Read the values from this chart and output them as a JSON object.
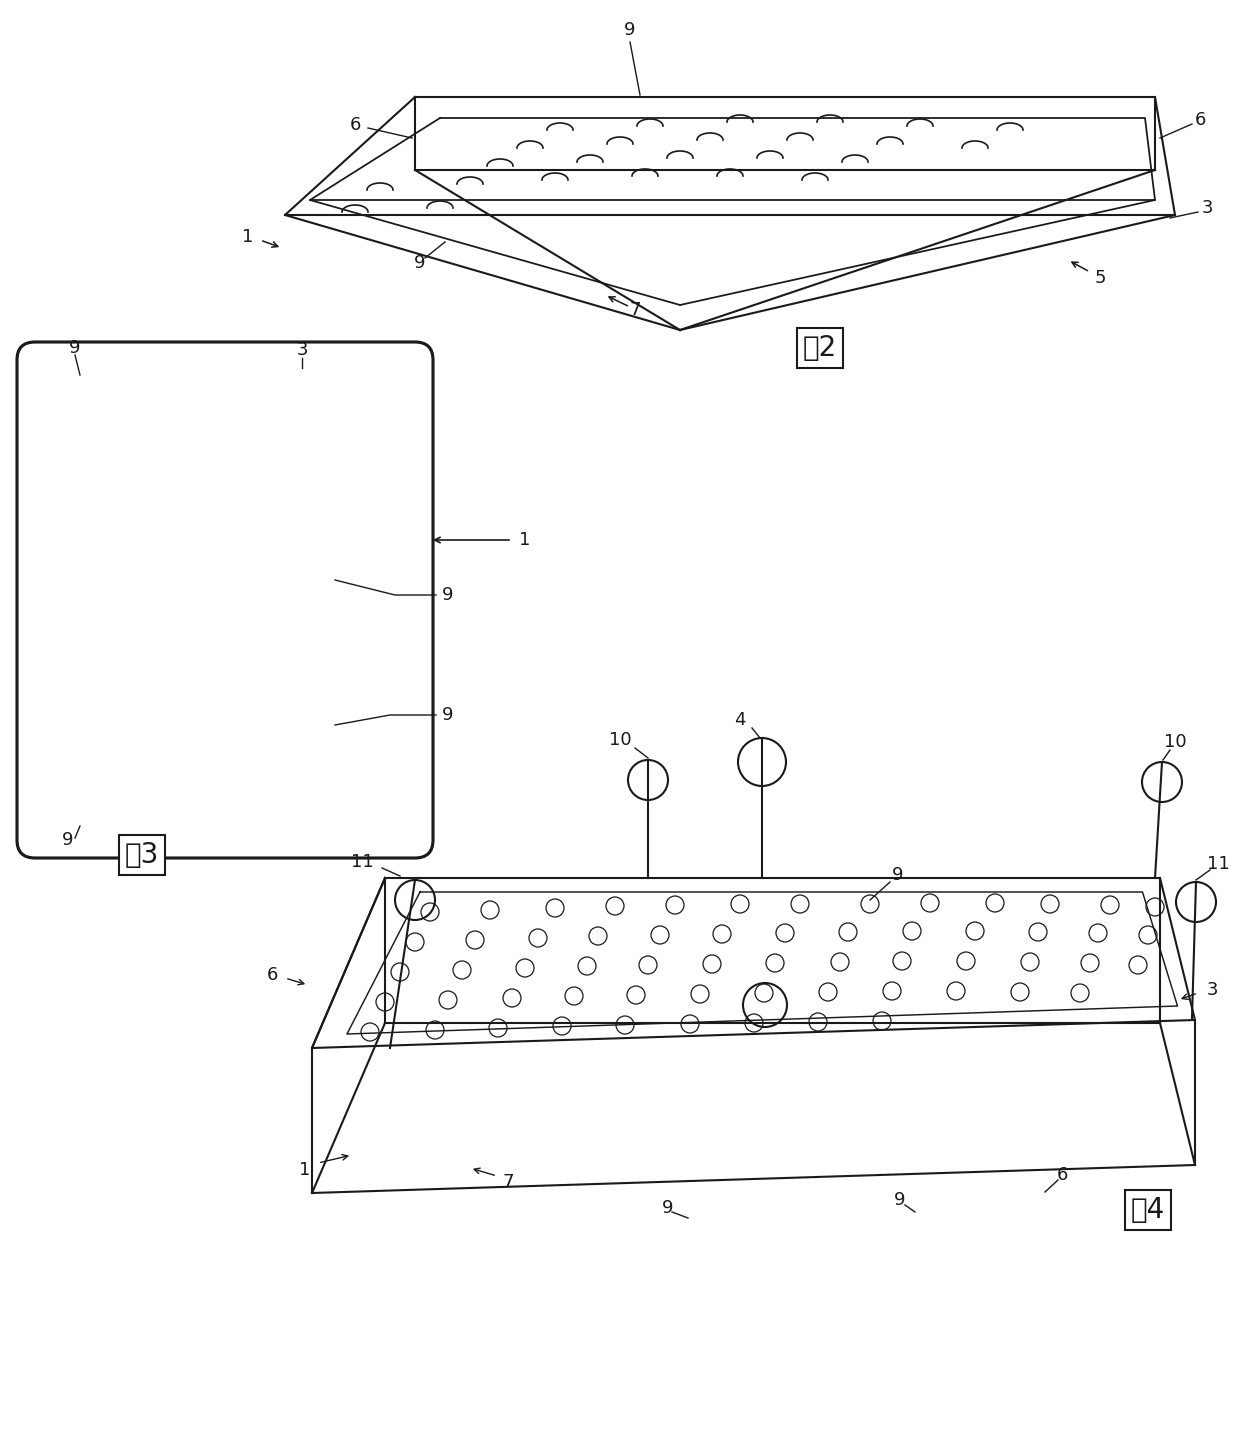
{
  "fig_width": 12.4,
  "fig_height": 14.43,
  "bg_color": "#ffffff",
  "line_color": "#1a1a1a",
  "line_width": 1.5,
  "label_fontsize": 13,
  "caption_fontsize": 18,
  "fig2_caption": "图2",
  "fig3_caption": "图3",
  "fig4_caption": "图4"
}
